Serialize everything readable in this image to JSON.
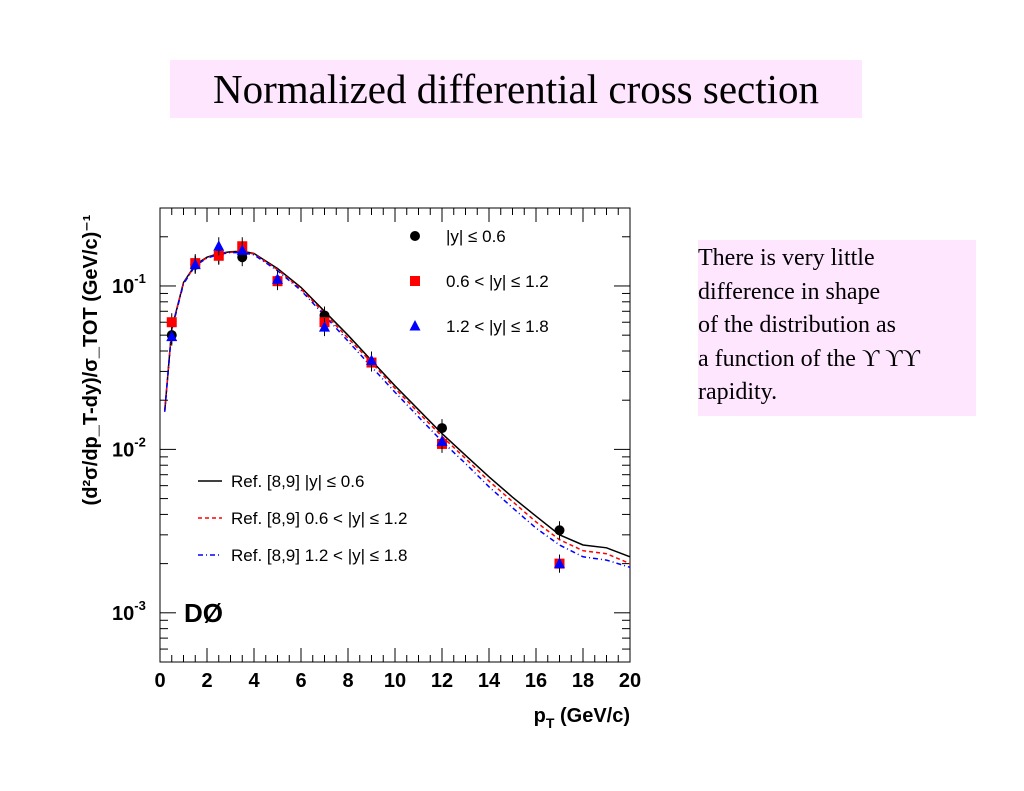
{
  "title": "Normalized differential cross section",
  "note": {
    "lines": [
      "There is very little",
      "difference in shape",
      "of the distribution as",
      "a function of the ϒ ϒϒ",
      "rapidity."
    ]
  },
  "chart_data": {
    "type": "scatter",
    "xlabel_main": "p",
    "xlabel_sub": "T",
    "xlabel_rest": " (GeV/c)",
    "ylabel": "(d²σ/dp_T-dy)/σ_TOT (GeV/c)⁻¹",
    "xlim": [
      0,
      20
    ],
    "ylim": [
      0.0005,
      0.3
    ],
    "yscale": "log",
    "xticks": [
      "0",
      "2",
      "4",
      "6",
      "8",
      "10",
      "12",
      "14",
      "16",
      "18",
      "20"
    ],
    "yticks": [
      {
        "value": 0.1,
        "base": "10",
        "exp": "-1"
      },
      {
        "value": 0.01,
        "base": "10",
        "exp": "-2"
      },
      {
        "value": 0.001,
        "base": "10",
        "exp": "-3"
      }
    ],
    "experiment_label": "DØ",
    "series": [
      {
        "name": "|y| ≤ 0.6",
        "marker": "circle",
        "color": "#000000",
        "points": [
          {
            "x": 0.5,
            "y": 0.05
          },
          {
            "x": 1.5,
            "y": 0.135
          },
          {
            "x": 2.5,
            "y": 0.155
          },
          {
            "x": 3.5,
            "y": 0.15
          },
          {
            "x": 5.0,
            "y": 0.108
          },
          {
            "x": 7.0,
            "y": 0.066
          },
          {
            "x": 9.0,
            "y": 0.034
          },
          {
            "x": 12.0,
            "y": 0.0135
          },
          {
            "x": 17.0,
            "y": 0.0032
          }
        ]
      },
      {
        "name": "0.6 < |y| ≤ 1.2",
        "marker": "square",
        "color": "#ff0000",
        "points": [
          {
            "x": 0.5,
            "y": 0.06
          },
          {
            "x": 1.5,
            "y": 0.138
          },
          {
            "x": 2.5,
            "y": 0.153
          },
          {
            "x": 3.5,
            "y": 0.175
          },
          {
            "x": 5.0,
            "y": 0.107
          },
          {
            "x": 7.0,
            "y": 0.06
          },
          {
            "x": 9.0,
            "y": 0.034
          },
          {
            "x": 12.0,
            "y": 0.0108
          },
          {
            "x": 17.0,
            "y": 0.002
          }
        ]
      },
      {
        "name": "1.2 < |y| ≤ 1.8",
        "marker": "triangle",
        "color": "#0000ff",
        "points": [
          {
            "x": 0.5,
            "y": 0.049
          },
          {
            "x": 1.5,
            "y": 0.135
          },
          {
            "x": 2.5,
            "y": 0.175
          },
          {
            "x": 3.5,
            "y": 0.165
          },
          {
            "x": 5.0,
            "y": 0.11
          },
          {
            "x": 7.0,
            "y": 0.056
          },
          {
            "x": 9.0,
            "y": 0.035
          },
          {
            "x": 12.0,
            "y": 0.0112
          },
          {
            "x": 17.0,
            "y": 0.002
          }
        ]
      }
    ],
    "curves": [
      {
        "name": "Ref. [8,9] |y| ≤ 0.6",
        "style": "solid",
        "color": "#000000",
        "points": [
          [
            0.2,
            0.017
          ],
          [
            0.5,
            0.055
          ],
          [
            1,
            0.105
          ],
          [
            1.5,
            0.135
          ],
          [
            2,
            0.15
          ],
          [
            2.5,
            0.158
          ],
          [
            3,
            0.162
          ],
          [
            3.5,
            0.163
          ],
          [
            4,
            0.158
          ],
          [
            5,
            0.128
          ],
          [
            6,
            0.098
          ],
          [
            7,
            0.07
          ],
          [
            8,
            0.05
          ],
          [
            9,
            0.035
          ],
          [
            10,
            0.0245
          ],
          [
            11,
            0.0175
          ],
          [
            12,
            0.0125
          ],
          [
            13,
            0.0092
          ],
          [
            14,
            0.0068
          ],
          [
            15,
            0.0051
          ],
          [
            16,
            0.0039
          ],
          [
            17,
            0.003
          ],
          [
            18,
            0.0026
          ],
          [
            19,
            0.0025
          ],
          [
            20,
            0.0022
          ]
        ]
      },
      {
        "name": "Ref. [8,9] 0.6 < |y| ≤ 1.2",
        "style": "dashed",
        "color": "#ff0000",
        "points": [
          [
            0.2,
            0.017
          ],
          [
            0.5,
            0.055
          ],
          [
            1,
            0.104
          ],
          [
            1.5,
            0.134
          ],
          [
            2,
            0.149
          ],
          [
            2.5,
            0.157
          ],
          [
            3,
            0.161
          ],
          [
            3.5,
            0.162
          ],
          [
            4,
            0.157
          ],
          [
            5,
            0.126
          ],
          [
            6,
            0.096
          ],
          [
            7,
            0.068
          ],
          [
            8,
            0.048
          ],
          [
            9,
            0.034
          ],
          [
            10,
            0.0236
          ],
          [
            11,
            0.0168
          ],
          [
            12,
            0.012
          ],
          [
            13,
            0.0088
          ],
          [
            14,
            0.0064
          ],
          [
            15,
            0.0048
          ],
          [
            16,
            0.0036
          ],
          [
            17,
            0.0028
          ],
          [
            18,
            0.0024
          ],
          [
            19,
            0.0023
          ],
          [
            20,
            0.002
          ]
        ]
      },
      {
        "name": "Ref. [8,9] 1.2 < |y| ≤ 1.8",
        "style": "dashdot",
        "color": "#0000ff",
        "points": [
          [
            0.2,
            0.017
          ],
          [
            0.5,
            0.054
          ],
          [
            1,
            0.103
          ],
          [
            1.5,
            0.133
          ],
          [
            2,
            0.148
          ],
          [
            2.5,
            0.156
          ],
          [
            3,
            0.16
          ],
          [
            3.5,
            0.16
          ],
          [
            4,
            0.155
          ],
          [
            5,
            0.124
          ],
          [
            6,
            0.094
          ],
          [
            7,
            0.066
          ],
          [
            8,
            0.046
          ],
          [
            9,
            0.032
          ],
          [
            10,
            0.0224
          ],
          [
            11,
            0.0158
          ],
          [
            12,
            0.0112
          ],
          [
            13,
            0.0082
          ],
          [
            14,
            0.0059
          ],
          [
            15,
            0.0044
          ],
          [
            16,
            0.0033
          ],
          [
            17,
            0.0026
          ],
          [
            18,
            0.0022
          ],
          [
            19,
            0.0021
          ],
          [
            20,
            0.0019
          ]
        ]
      }
    ]
  }
}
